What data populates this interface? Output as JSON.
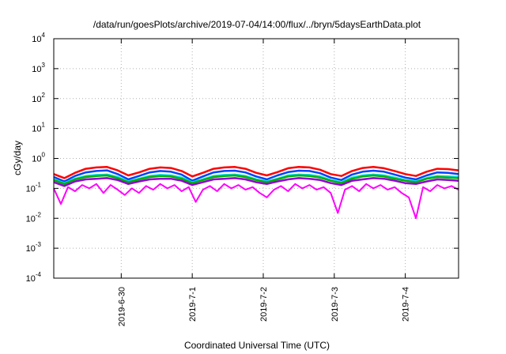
{
  "chart_data": {
    "type": "line",
    "title": "/data/run/goesPlots/archive/2019-07-04/14:00/flux/../bryn/5daysEarthData.plot",
    "xlabel": "Coordinated Universal Time (UTC)",
    "ylabel": "cGy/day",
    "yscale": "log",
    "ylim": [
      0.0001,
      10000
    ],
    "xlim": [
      -0.95,
      4.75
    ],
    "x_unit": "days since 2019-06-30 00:00 UTC",
    "x_ticks": [
      {
        "value": 0,
        "label": "2019-6-30"
      },
      {
        "value": 1,
        "label": "2019-7-1"
      },
      {
        "value": 2,
        "label": "2019-7-2"
      },
      {
        "value": 3,
        "label": "2019-7-3"
      },
      {
        "value": 4,
        "label": "2019-7-4"
      }
    ],
    "y_ticks": [
      {
        "value": 0.0001,
        "base": "10",
        "exp": "-4"
      },
      {
        "value": 0.001,
        "base": "10",
        "exp": "-3"
      },
      {
        "value": 0.01,
        "base": "10",
        "exp": "-2"
      },
      {
        "value": 0.1,
        "base": "10",
        "exp": "-1"
      },
      {
        "value": 1,
        "base": "10",
        "exp": "0"
      },
      {
        "value": 10,
        "base": "10",
        "exp": "1"
      },
      {
        "value": 100,
        "base": "10",
        "exp": "2"
      },
      {
        "value": 1000,
        "base": "10",
        "exp": "3"
      },
      {
        "value": 10000,
        "base": "10",
        "exp": "4"
      }
    ],
    "grid": true,
    "legend": "none",
    "series": [
      {
        "color": "#ff0000",
        "x": [
          -0.95,
          -0.8,
          -0.65,
          -0.5,
          -0.35,
          -0.2,
          -0.05,
          0.1,
          0.25,
          0.4,
          0.55,
          0.7,
          0.85,
          1.0,
          1.15,
          1.3,
          1.45,
          1.6,
          1.75,
          1.9,
          2.05,
          2.2,
          2.35,
          2.5,
          2.65,
          2.8,
          2.95,
          3.1,
          3.25,
          3.4,
          3.55,
          3.7,
          3.85,
          4.0,
          4.15,
          4.3,
          4.45,
          4.6,
          4.75
        ],
        "y": [
          0.3,
          0.22,
          0.33,
          0.45,
          0.5,
          0.52,
          0.4,
          0.27,
          0.34,
          0.45,
          0.5,
          0.48,
          0.38,
          0.25,
          0.33,
          0.45,
          0.5,
          0.52,
          0.45,
          0.33,
          0.27,
          0.35,
          0.47,
          0.52,
          0.5,
          0.42,
          0.3,
          0.26,
          0.38,
          0.48,
          0.52,
          0.47,
          0.38,
          0.3,
          0.26,
          0.36,
          0.45,
          0.44,
          0.4
        ]
      },
      {
        "color": "#0044ff",
        "x": [
          -0.95,
          -0.8,
          -0.65,
          -0.5,
          -0.35,
          -0.2,
          -0.05,
          0.1,
          0.25,
          0.4,
          0.55,
          0.7,
          0.85,
          1.0,
          1.15,
          1.3,
          1.45,
          1.6,
          1.75,
          1.9,
          2.05,
          2.2,
          2.35,
          2.5,
          2.65,
          2.8,
          2.95,
          3.1,
          3.25,
          3.4,
          3.55,
          3.7,
          3.85,
          4.0,
          4.15,
          4.3,
          4.45,
          4.6,
          4.75
        ],
        "y": [
          0.24,
          0.17,
          0.26,
          0.34,
          0.38,
          0.4,
          0.3,
          0.2,
          0.26,
          0.34,
          0.38,
          0.36,
          0.29,
          0.18,
          0.25,
          0.34,
          0.38,
          0.39,
          0.34,
          0.25,
          0.2,
          0.27,
          0.35,
          0.39,
          0.38,
          0.32,
          0.23,
          0.19,
          0.29,
          0.36,
          0.39,
          0.36,
          0.29,
          0.23,
          0.2,
          0.27,
          0.34,
          0.33,
          0.3
        ]
      },
      {
        "color": "#00e0e0",
        "x": [
          -0.95,
          -0.8,
          -0.65,
          -0.5,
          -0.35,
          -0.2,
          -0.05,
          0.1,
          0.25,
          0.4,
          0.55,
          0.7,
          0.85,
          1.0,
          1.15,
          1.3,
          1.45,
          1.6,
          1.75,
          1.9,
          2.05,
          2.2,
          2.35,
          2.5,
          2.65,
          2.8,
          2.95,
          3.1,
          3.25,
          3.4,
          3.55,
          3.7,
          3.85,
          4.0,
          4.15,
          4.3,
          4.45,
          4.6,
          4.75
        ],
        "y": [
          0.2,
          0.15,
          0.21,
          0.26,
          0.28,
          0.29,
          0.24,
          0.17,
          0.21,
          0.26,
          0.28,
          0.27,
          0.23,
          0.16,
          0.2,
          0.26,
          0.28,
          0.29,
          0.26,
          0.2,
          0.17,
          0.21,
          0.27,
          0.29,
          0.28,
          0.25,
          0.19,
          0.16,
          0.23,
          0.27,
          0.29,
          0.27,
          0.23,
          0.19,
          0.17,
          0.22,
          0.26,
          0.25,
          0.24
        ]
      },
      {
        "color": "#00b000",
        "x": [
          -0.95,
          -0.8,
          -0.65,
          -0.5,
          -0.35,
          -0.2,
          -0.05,
          0.1,
          0.25,
          0.4,
          0.55,
          0.7,
          0.85,
          1.0,
          1.15,
          1.3,
          1.45,
          1.6,
          1.75,
          1.9,
          2.05,
          2.2,
          2.35,
          2.5,
          2.65,
          2.8,
          2.95,
          3.1,
          3.25,
          3.4,
          3.55,
          3.7,
          3.85,
          4.0,
          4.15,
          4.3,
          4.45,
          4.6,
          4.75
        ],
        "y": [
          0.19,
          0.14,
          0.2,
          0.24,
          0.26,
          0.27,
          0.22,
          0.16,
          0.2,
          0.24,
          0.26,
          0.25,
          0.21,
          0.15,
          0.19,
          0.24,
          0.26,
          0.27,
          0.24,
          0.19,
          0.16,
          0.2,
          0.25,
          0.27,
          0.26,
          0.23,
          0.18,
          0.15,
          0.21,
          0.25,
          0.27,
          0.25,
          0.21,
          0.18,
          0.16,
          0.21,
          0.24,
          0.23,
          0.22
        ]
      },
      {
        "color": "#9400d3",
        "x": [
          -0.95,
          -0.8,
          -0.65,
          -0.5,
          -0.35,
          -0.2,
          -0.05,
          0.1,
          0.25,
          0.4,
          0.55,
          0.7,
          0.85,
          1.0,
          1.15,
          1.3,
          1.45,
          1.6,
          1.75,
          1.9,
          2.05,
          2.2,
          2.35,
          2.5,
          2.65,
          2.8,
          2.95,
          3.1,
          3.25,
          3.4,
          3.55,
          3.7,
          3.85,
          4.0,
          4.15,
          4.3,
          4.45,
          4.6,
          4.75
        ],
        "y": [
          0.16,
          0.12,
          0.17,
          0.2,
          0.21,
          0.22,
          0.19,
          0.14,
          0.17,
          0.2,
          0.21,
          0.21,
          0.18,
          0.13,
          0.16,
          0.2,
          0.21,
          0.22,
          0.2,
          0.16,
          0.14,
          0.17,
          0.2,
          0.22,
          0.21,
          0.19,
          0.15,
          0.13,
          0.18,
          0.2,
          0.22,
          0.21,
          0.18,
          0.15,
          0.14,
          0.17,
          0.2,
          0.19,
          0.18
        ]
      },
      {
        "color": "#ff00ff",
        "x": [
          -0.95,
          -0.85,
          -0.75,
          -0.65,
          -0.55,
          -0.45,
          -0.35,
          -0.25,
          -0.15,
          -0.05,
          0.05,
          0.15,
          0.25,
          0.35,
          0.45,
          0.55,
          0.65,
          0.75,
          0.85,
          0.95,
          1.05,
          1.15,
          1.25,
          1.35,
          1.45,
          1.55,
          1.65,
          1.75,
          1.85,
          1.95,
          2.05,
          2.15,
          2.25,
          2.35,
          2.45,
          2.55,
          2.65,
          2.75,
          2.85,
          2.95,
          3.05,
          3.15,
          3.25,
          3.35,
          3.45,
          3.55,
          3.65,
          3.75,
          3.85,
          3.95,
          4.05,
          4.15,
          4.25,
          4.35,
          4.45,
          4.55,
          4.65,
          4.75
        ],
        "y": [
          0.1,
          0.03,
          0.11,
          0.08,
          0.13,
          0.1,
          0.14,
          0.07,
          0.13,
          0.09,
          0.06,
          0.1,
          0.07,
          0.12,
          0.09,
          0.14,
          0.1,
          0.13,
          0.08,
          0.11,
          0.035,
          0.09,
          0.12,
          0.08,
          0.14,
          0.1,
          0.13,
          0.09,
          0.11,
          0.07,
          0.05,
          0.09,
          0.12,
          0.08,
          0.14,
          0.1,
          0.13,
          0.09,
          0.11,
          0.07,
          0.015,
          0.09,
          0.12,
          0.08,
          0.14,
          0.1,
          0.13,
          0.09,
          0.11,
          0.07,
          0.05,
          0.01,
          0.11,
          0.08,
          0.13,
          0.1,
          0.12,
          0.09
        ]
      }
    ]
  }
}
